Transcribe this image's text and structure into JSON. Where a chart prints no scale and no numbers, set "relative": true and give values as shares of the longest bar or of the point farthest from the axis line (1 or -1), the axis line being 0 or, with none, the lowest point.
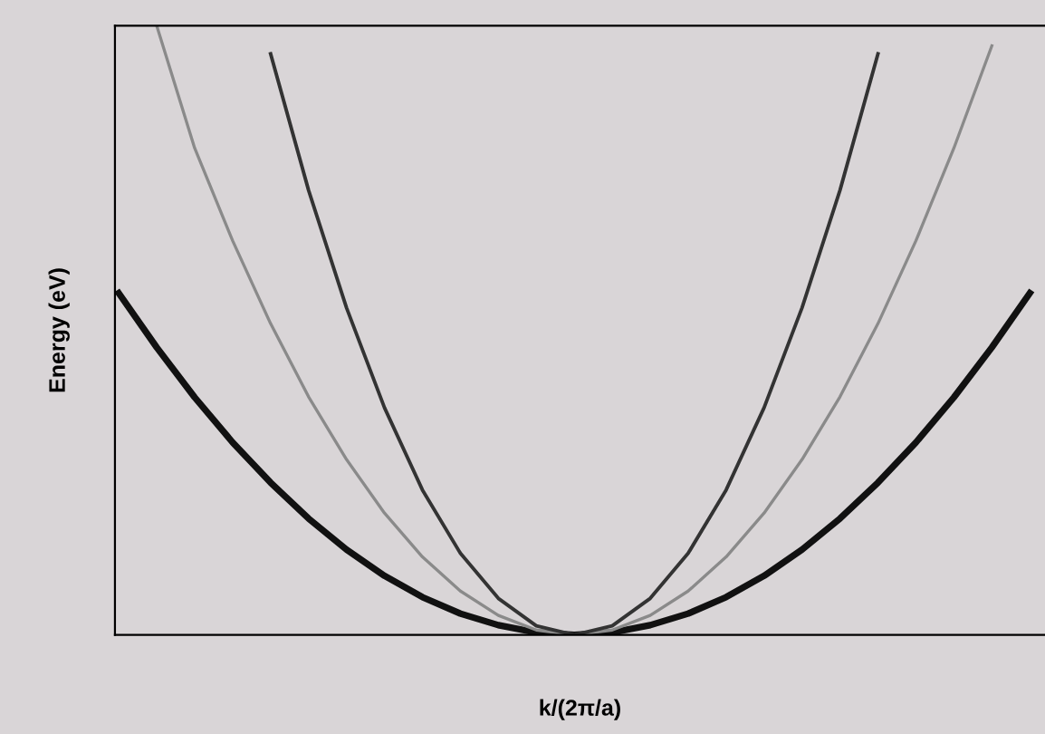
{
  "chart_data": {
    "type": "line",
    "relative": true,
    "xlabel": "k/(2π/a)",
    "ylabel": "Energy (eV)",
    "categories": [
      null,
      null,
      null,
      null,
      null,
      null,
      null,
      null,
      null,
      null,
      null,
      null,
      null,
      null,
      null,
      null,
      null,
      null,
      null,
      null,
      null,
      null,
      null,
      null,
      null
    ],
    "series": [
      {
        "color": "#111111",
        "values": [
          0.561,
          0.472,
          0.39,
          0.316,
          0.25,
          0.191,
          0.14,
          0.097,
          0.062,
          0.035,
          0.016,
          0.004,
          0,
          0.004,
          0.016,
          0.035,
          0.062,
          0.097,
          0.14,
          0.191,
          0.25,
          0.316,
          0.39,
          0.472,
          0.561
        ]
      },
      {
        "color": "#8a8a8a",
        "values": [
          null,
          1.0,
          0.799,
          0.647,
          0.511,
          0.391,
          0.288,
          0.2,
          0.128,
          0.072,
          0.032,
          0.008,
          0,
          0.008,
          0.032,
          0.072,
          0.128,
          0.2,
          0.288,
          0.391,
          0.511,
          0.647,
          0.799,
          0.967,
          null
        ]
      },
      {
        "color": "#333333",
        "values": [
          null,
          null,
          null,
          null,
          0.954,
          0.73,
          0.537,
          0.373,
          0.238,
          0.134,
          0.06,
          0.015,
          0,
          0.015,
          0.06,
          0.134,
          0.238,
          0.373,
          0.537,
          0.73,
          0.954,
          null,
          null,
          null,
          null
        ]
      }
    ],
    "grid": false,
    "legend": false,
    "marker": "none",
    "line_style": "solid"
  }
}
